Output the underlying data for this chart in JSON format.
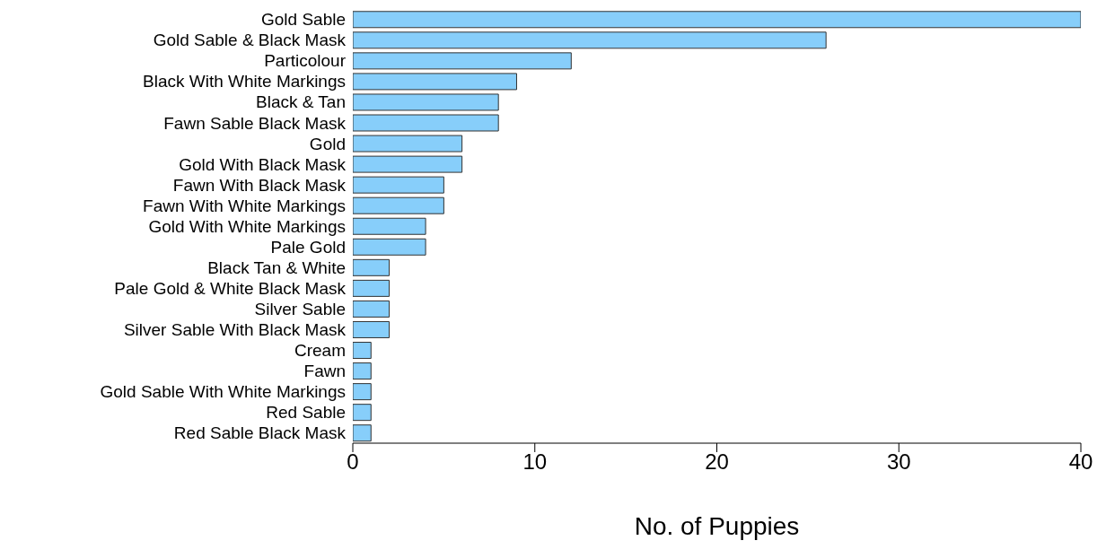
{
  "chart_data": {
    "type": "bar",
    "orientation": "horizontal",
    "xlabel": "No. of Puppies",
    "categories": [
      "Gold Sable",
      "Gold Sable & Black Mask",
      "Particolour",
      "Black With White Markings",
      "Black & Tan",
      "Fawn Sable Black Mask",
      "Gold",
      "Gold With Black Mask",
      "Fawn With Black Mask",
      "Fawn With White Markings",
      "Gold With White Markings",
      "Pale Gold",
      "Black Tan & White",
      "Pale Gold & White Black Mask",
      "Silver Sable",
      "Silver Sable With Black Mask",
      "Cream",
      "Fawn",
      "Gold Sable With White Markings",
      "Red Sable",
      "Red Sable Black Mask"
    ],
    "values": [
      40,
      26,
      12,
      9,
      8,
      8,
      6,
      6,
      5,
      5,
      4,
      4,
      2,
      2,
      2,
      2,
      1,
      1,
      1,
      1,
      1
    ],
    "color": "#87cefa",
    "xlim": [
      0,
      40
    ],
    "xticks": [
      0,
      10,
      20,
      30,
      40
    ],
    "grid": false,
    "legend": false
  }
}
